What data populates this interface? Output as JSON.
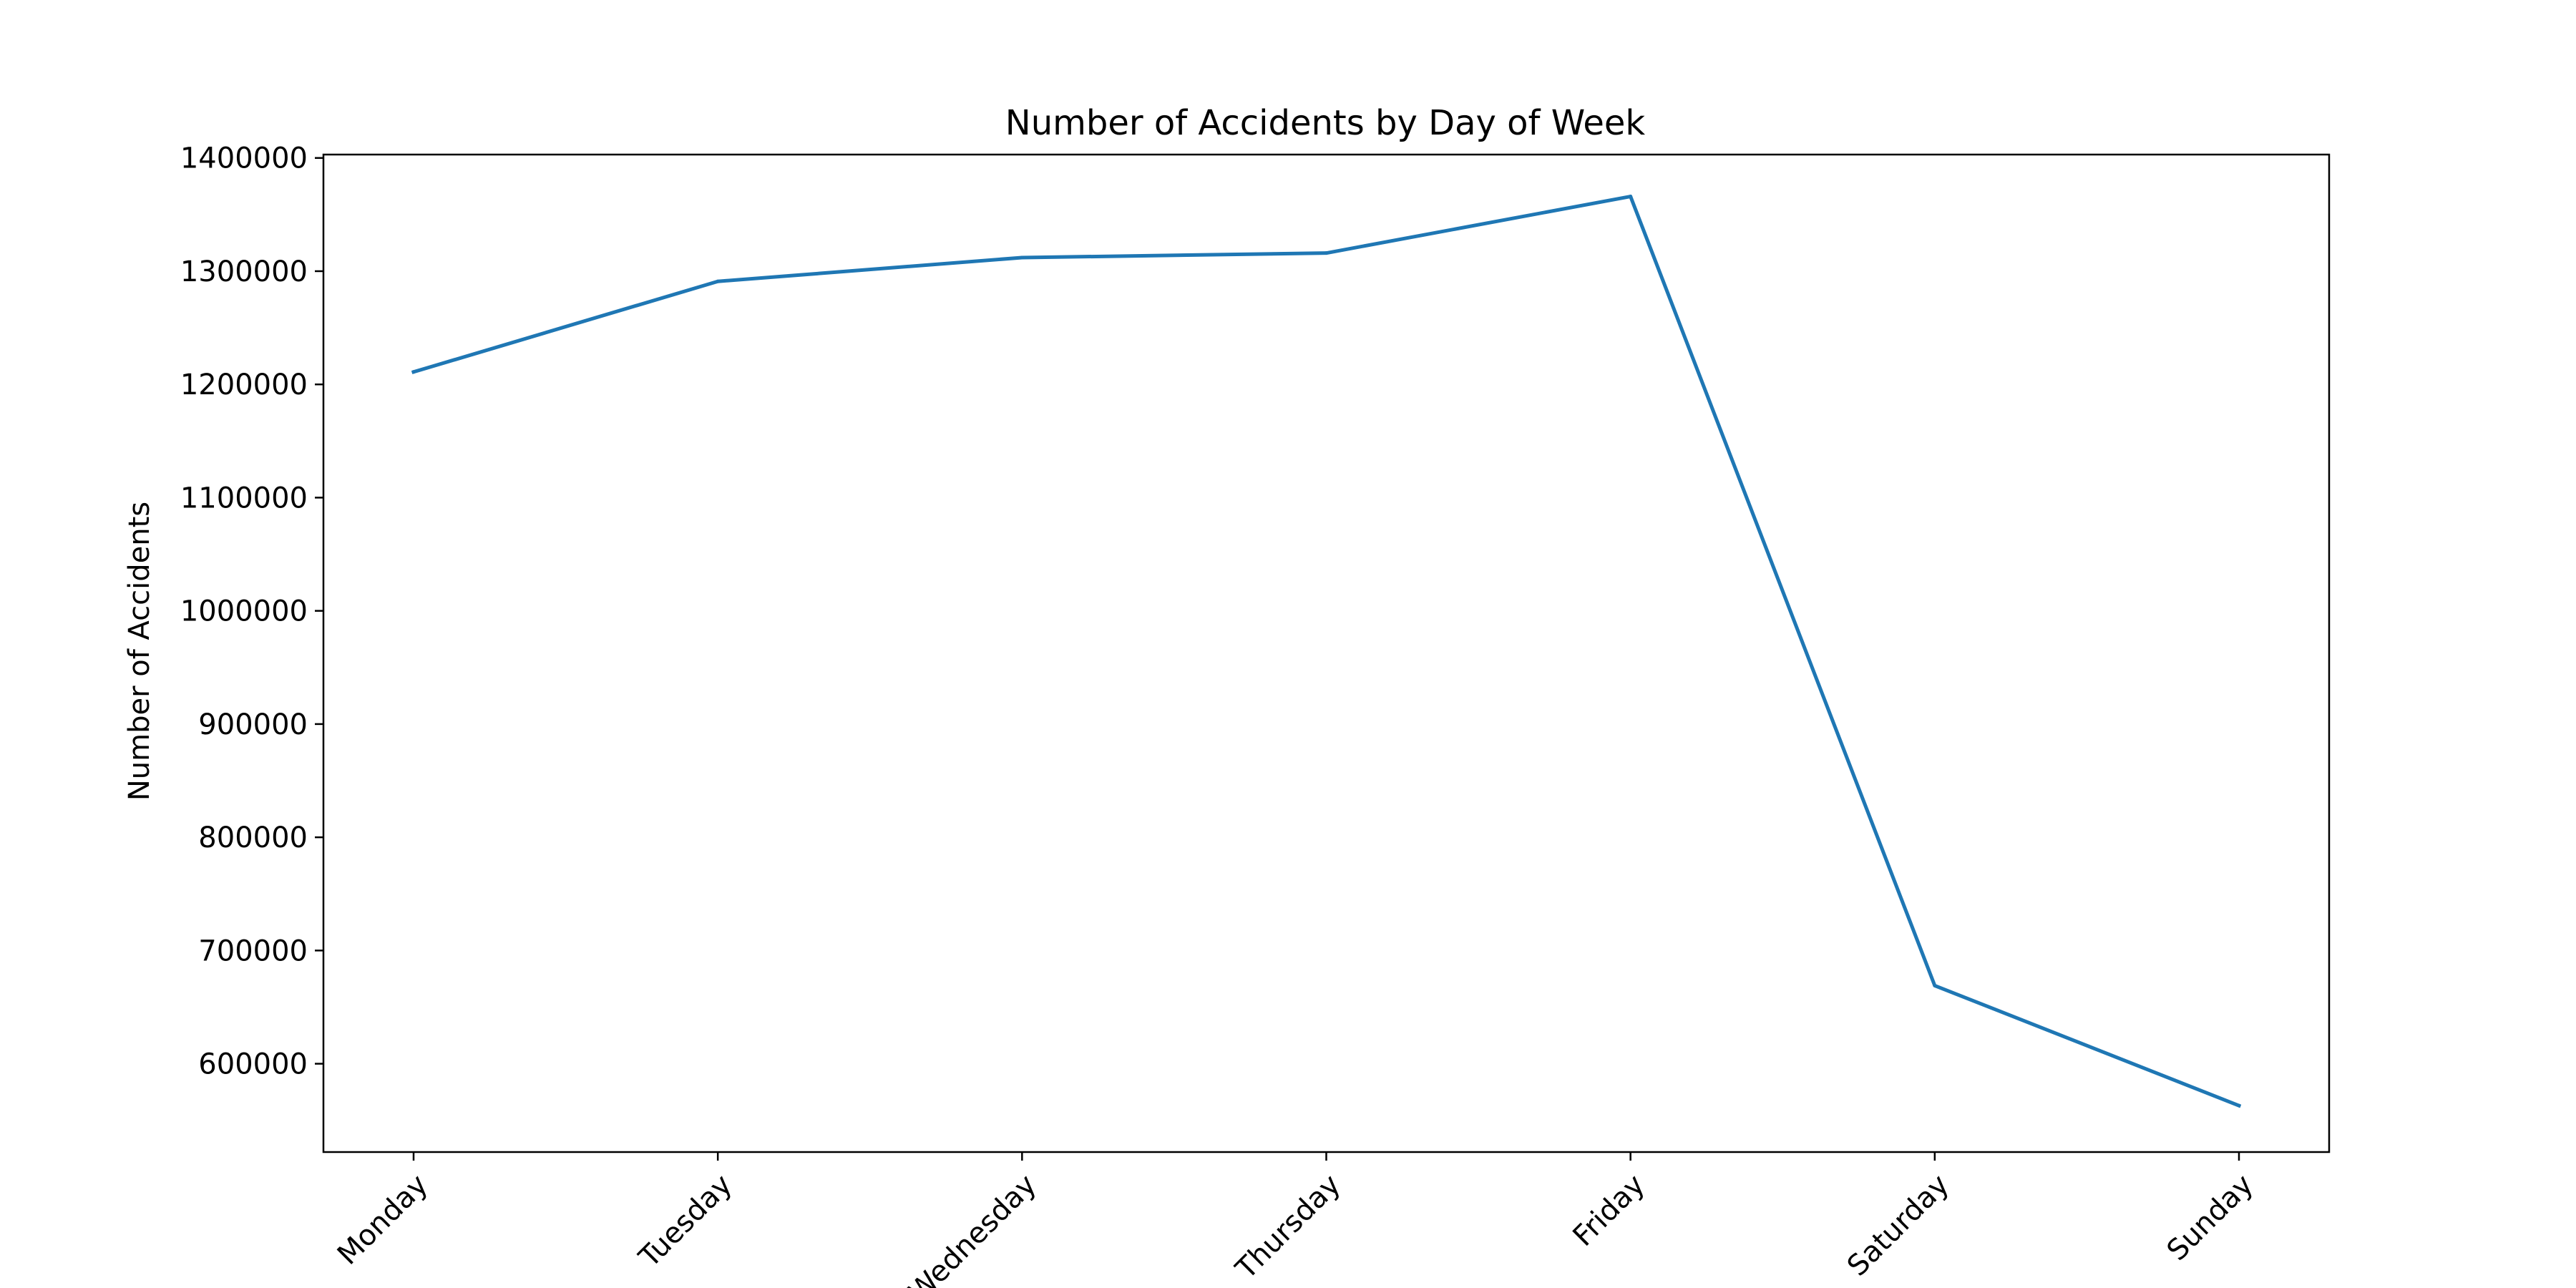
{
  "chart_data": {
    "type": "line",
    "title": "Number of Accidents by Day of Week",
    "xlabel": "",
    "ylabel": "Number of Accidents",
    "categories": [
      "Monday",
      "Tuesday",
      "Wednesday",
      "Thursday",
      "Friday",
      "Saturday",
      "Sunday"
    ],
    "series": [
      {
        "values": [
          1211000,
          1291000,
          1312000,
          1316000,
          1366000,
          669000,
          563000
        ],
        "color": "#1f77b4"
      }
    ],
    "yticks": [
      600000,
      700000,
      800000,
      900000,
      1000000,
      1100000,
      1200000,
      1300000,
      1400000
    ],
    "ylim": [
      522000,
      1403000
    ],
    "grid": false,
    "legend": "none"
  }
}
